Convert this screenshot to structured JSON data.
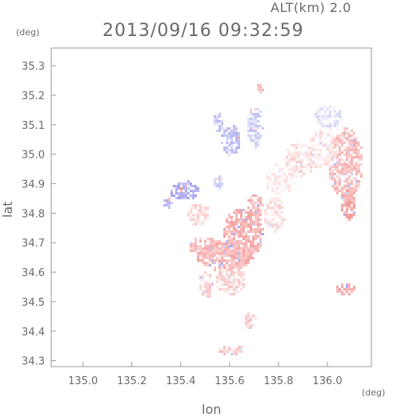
{
  "header": {
    "altitude": "ALT(km)  2.0",
    "timestamp": "2013/09/16 09:32:59"
  },
  "chart_data": {
    "type": "heatmap",
    "title": "2013/09/16 09:32:59",
    "xlabel": "lon",
    "ylabel": "lat",
    "x_unit": "(deg)",
    "y_unit": "(deg)",
    "xlim": [
      134.87,
      136.18
    ],
    "ylim": [
      34.28,
      35.36
    ],
    "x_ticks": [
      135.0,
      135.2,
      135.4,
      135.6,
      135.8,
      136.0
    ],
    "x_tick_labels": [
      "135.0",
      "135.2",
      "135.4",
      "135.6",
      "135.8",
      "136.0"
    ],
    "y_ticks": [
      34.3,
      34.4,
      34.5,
      34.6,
      34.7,
      34.8,
      34.9,
      35.0,
      35.1,
      35.2,
      35.3
    ],
    "y_tick_labels": [
      "34.3",
      "34.4",
      "34.5",
      "34.6",
      "34.7",
      "34.8",
      "34.9",
      "35.0",
      "35.1",
      "35.2",
      "35.3"
    ],
    "colors": {
      "positive": "#f08080",
      "negative": "#8a8ae8",
      "neutral": "#e8e8f4"
    },
    "regions": [
      {
        "lon": 135.65,
        "lat": 34.73,
        "rx": 0.08,
        "ry": 0.09,
        "value": 0.55
      },
      {
        "lon": 135.58,
        "lat": 34.66,
        "rx": 0.12,
        "ry": 0.05,
        "value": 0.5
      },
      {
        "lon": 135.5,
        "lat": 34.69,
        "rx": 0.07,
        "ry": 0.03,
        "value": 0.45
      },
      {
        "lon": 135.6,
        "lat": 34.58,
        "rx": 0.06,
        "ry": 0.05,
        "value": 0.3
      },
      {
        "lon": 135.7,
        "lat": 34.82,
        "rx": 0.03,
        "ry": 0.05,
        "value": 0.5
      },
      {
        "lon": 136.07,
        "lat": 34.97,
        "rx": 0.07,
        "ry": 0.12,
        "value": 0.45
      },
      {
        "lon": 136.08,
        "lat": 34.83,
        "rx": 0.03,
        "ry": 0.05,
        "value": 0.6
      },
      {
        "lon": 135.98,
        "lat": 35.02,
        "rx": 0.06,
        "ry": 0.07,
        "value": 0.15
      },
      {
        "lon": 136.0,
        "lat": 35.13,
        "rx": 0.06,
        "ry": 0.04,
        "value": -0.2
      },
      {
        "lon": 135.88,
        "lat": 34.98,
        "rx": 0.06,
        "ry": 0.06,
        "value": 0.2
      },
      {
        "lon": 135.8,
        "lat": 34.92,
        "rx": 0.06,
        "ry": 0.05,
        "value": 0.1
      },
      {
        "lon": 135.41,
        "lat": 34.88,
        "rx": 0.06,
        "ry": 0.03,
        "value": -0.6
      },
      {
        "lon": 135.34,
        "lat": 34.84,
        "rx": 0.02,
        "ry": 0.02,
        "value": -0.5
      },
      {
        "lon": 135.6,
        "lat": 35.05,
        "rx": 0.04,
        "ry": 0.05,
        "value": -0.45
      },
      {
        "lon": 135.55,
        "lat": 35.11,
        "rx": 0.02,
        "ry": 0.03,
        "value": -0.4
      },
      {
        "lon": 135.7,
        "lat": 35.1,
        "rx": 0.03,
        "ry": 0.07,
        "value": -0.35
      },
      {
        "lon": 135.55,
        "lat": 34.91,
        "rx": 0.02,
        "ry": 0.02,
        "value": -0.3
      },
      {
        "lon": 135.47,
        "lat": 34.8,
        "rx": 0.04,
        "ry": 0.04,
        "value": 0.25
      },
      {
        "lon": 135.5,
        "lat": 34.56,
        "rx": 0.03,
        "ry": 0.04,
        "value": 0.3
      },
      {
        "lon": 136.07,
        "lat": 34.55,
        "rx": 0.04,
        "ry": 0.02,
        "value": 0.55
      },
      {
        "lon": 135.68,
        "lat": 34.44,
        "rx": 0.02,
        "ry": 0.03,
        "value": 0.35
      },
      {
        "lon": 135.6,
        "lat": 34.34,
        "rx": 0.05,
        "ry": 0.015,
        "value": 0.35
      },
      {
        "lon": 135.78,
        "lat": 34.8,
        "rx": 0.04,
        "ry": 0.06,
        "value": 0.2
      },
      {
        "lon": 135.72,
        "lat": 35.23,
        "rx": 0.01,
        "ry": 0.02,
        "value": 0.4
      }
    ]
  }
}
